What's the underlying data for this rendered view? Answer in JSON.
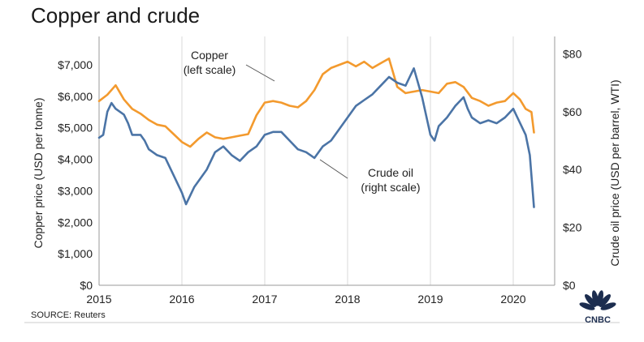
{
  "title": "Copper and crude",
  "source": "SOURCE: Reuters",
  "logo": {
    "text": "CNBC",
    "icon": "cnbc-peacock-icon"
  },
  "annotations": {
    "copper": [
      "Copper",
      "(left scale)"
    ],
    "crude": [
      "Crude oil",
      "(right scale)"
    ]
  },
  "colors": {
    "copper": "#f39a2e",
    "crude": "#4b74a6",
    "grid": "#d9d9d9",
    "axis": "#9a9a9a",
    "logo": "#1c2d4f"
  },
  "chart_data": {
    "type": "line",
    "title": "Copper and crude",
    "xlabel": "",
    "x_ticks": [
      "2015",
      "2016",
      "2017",
      "2018",
      "2019",
      "2020"
    ],
    "xlim": [
      2015.0,
      2020.5
    ],
    "ylabel_left": "Copper price (USD per tonne)",
    "ylabel_right": "Crude oil price (USD per barrel, WTI)",
    "ylim_left": [
      0,
      7900
    ],
    "ylim_right": [
      0,
      86
    ],
    "yticks_left": [
      "$0",
      "$1,000",
      "$2,000",
      "$3,000",
      "$4,000",
      "$5,000",
      "$6,000",
      "$7,000"
    ],
    "yticks_right": [
      "$0",
      "$20",
      "$40",
      "$60",
      "$80"
    ],
    "grid": true,
    "legend": "none",
    "series": [
      {
        "name": "Copper",
        "axis": "left",
        "x": [
          2015.0,
          2015.1,
          2015.2,
          2015.3,
          2015.4,
          2015.5,
          2015.6,
          2015.7,
          2015.8,
          2015.9,
          2016.0,
          2016.1,
          2016.2,
          2016.3,
          2016.4,
          2016.5,
          2016.6,
          2016.7,
          2016.8,
          2016.9,
          2017.0,
          2017.1,
          2017.2,
          2017.3,
          2017.4,
          2017.5,
          2017.6,
          2017.7,
          2017.8,
          2017.9,
          2018.0,
          2018.1,
          2018.2,
          2018.3,
          2018.4,
          2018.5,
          2018.6,
          2018.7,
          2018.8,
          2018.9,
          2019.0,
          2019.1,
          2019.2,
          2019.3,
          2019.4,
          2019.5,
          2019.6,
          2019.7,
          2019.8,
          2019.9,
          2020.0,
          2020.08,
          2020.15,
          2020.22,
          2020.25
        ],
        "values": [
          5850,
          6050,
          6350,
          5900,
          5600,
          5450,
          5250,
          5100,
          5050,
          4800,
          4550,
          4400,
          4650,
          4850,
          4700,
          4650,
          4700,
          4750,
          4800,
          5400,
          5800,
          5850,
          5800,
          5700,
          5650,
          5850,
          6200,
          6700,
          6900,
          7000,
          7100,
          6950,
          7100,
          6900,
          7050,
          7200,
          6300,
          6100,
          6150,
          6200,
          6150,
          6100,
          6400,
          6450,
          6300,
          5950,
          5850,
          5700,
          5800,
          5850,
          6100,
          5900,
          5600,
          5500,
          4850
        ]
      },
      {
        "name": "Crude oil",
        "axis": "right",
        "x": [
          2015.0,
          2015.05,
          2015.1,
          2015.15,
          2015.2,
          2015.25,
          2015.3,
          2015.35,
          2015.4,
          2015.5,
          2015.55,
          2015.6,
          2015.65,
          2015.7,
          2015.8,
          2015.9,
          2016.0,
          2016.05,
          2016.1,
          2016.15,
          2016.2,
          2016.3,
          2016.4,
          2016.5,
          2016.6,
          2016.7,
          2016.8,
          2016.9,
          2017.0,
          2017.1,
          2017.2,
          2017.3,
          2017.4,
          2017.5,
          2017.6,
          2017.7,
          2017.8,
          2017.9,
          2018.0,
          2018.1,
          2018.2,
          2018.3,
          2018.4,
          2018.5,
          2018.6,
          2018.7,
          2018.75,
          2018.8,
          2018.9,
          2019.0,
          2019.05,
          2019.1,
          2019.2,
          2019.3,
          2019.4,
          2019.45,
          2019.5,
          2019.6,
          2019.7,
          2019.8,
          2019.9,
          2020.0,
          2020.05,
          2020.1,
          2020.15,
          2020.2,
          2020.25
        ],
        "values": [
          51,
          52,
          60,
          63,
          61,
          60,
          59,
          56,
          52,
          52,
          50,
          47,
          46,
          45,
          44,
          38,
          32,
          28,
          31,
          34,
          36,
          40,
          46,
          48,
          45,
          43,
          46,
          48,
          52,
          53,
          53,
          50,
          47,
          46,
          44,
          48,
          50,
          54,
          58,
          62,
          64,
          66,
          69,
          72,
          70,
          69,
          72,
          75,
          65,
          52,
          50,
          55,
          58,
          62,
          65,
          61,
          58,
          56,
          57,
          56,
          58,
          61,
          58,
          55,
          52,
          45,
          27
        ]
      }
    ]
  }
}
